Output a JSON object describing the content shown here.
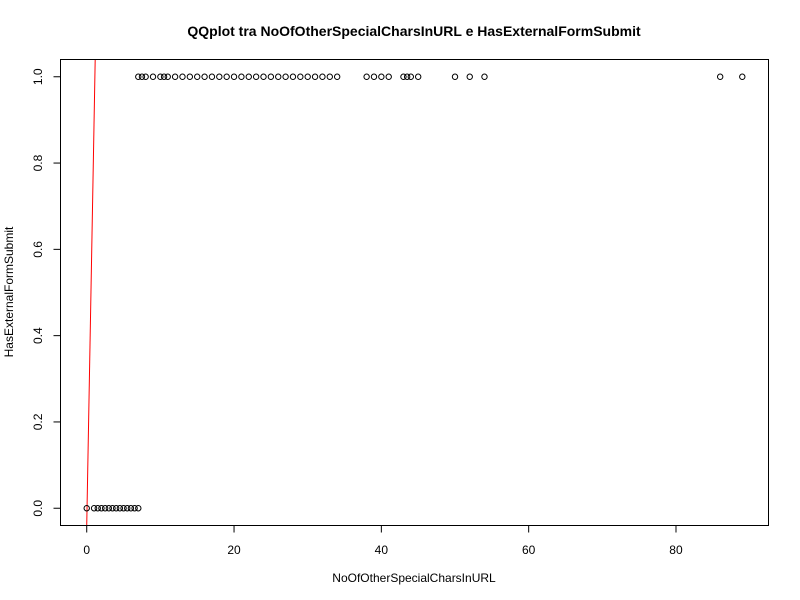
{
  "chart_data": {
    "type": "scatter",
    "title": "QQplot tra NoOfOtherSpecialCharsInURL e HasExternalFormSubmit",
    "xlabel": "NoOfOtherSpecialCharsInURL",
    "ylabel": "HasExternalFormSubmit",
    "xlim": [
      -3.56,
      92.56
    ],
    "ylim": [
      -0.04,
      1.04
    ],
    "x_ticks": [
      0,
      20,
      40,
      60,
      80
    ],
    "y_ticks": [
      0.0,
      0.2,
      0.4,
      0.6,
      0.8,
      1.0
    ],
    "x_tick_labels": [
      "0",
      "20",
      "40",
      "60",
      "80"
    ],
    "y_tick_labels": [
      "0.0",
      "0.2",
      "0.4",
      "0.6",
      "0.8",
      "1.0"
    ],
    "grid": false,
    "legend": "none",
    "series": [
      {
        "marker": "open-circle",
        "color": "#000000",
        "points": [
          {
            "x": 0,
            "y": 0
          },
          {
            "x": 1,
            "y": 0
          },
          {
            "x": 1.5,
            "y": 0
          },
          {
            "x": 2,
            "y": 0
          },
          {
            "x": 2.5,
            "y": 0
          },
          {
            "x": 3,
            "y": 0
          },
          {
            "x": 3.5,
            "y": 0
          },
          {
            "x": 4,
            "y": 0
          },
          {
            "x": 4.5,
            "y": 0
          },
          {
            "x": 5,
            "y": 0
          },
          {
            "x": 5.5,
            "y": 0
          },
          {
            "x": 6,
            "y": 0
          },
          {
            "x": 6.5,
            "y": 0
          },
          {
            "x": 7,
            "y": 0
          },
          {
            "x": 7,
            "y": 1
          },
          {
            "x": 7.5,
            "y": 1
          },
          {
            "x": 8,
            "y": 1
          },
          {
            "x": 9,
            "y": 1
          },
          {
            "x": 10,
            "y": 1
          },
          {
            "x": 10.5,
            "y": 1
          },
          {
            "x": 11,
            "y": 1
          },
          {
            "x": 12,
            "y": 1
          },
          {
            "x": 13,
            "y": 1
          },
          {
            "x": 14,
            "y": 1
          },
          {
            "x": 15,
            "y": 1
          },
          {
            "x": 16,
            "y": 1
          },
          {
            "x": 17,
            "y": 1
          },
          {
            "x": 18,
            "y": 1
          },
          {
            "x": 19,
            "y": 1
          },
          {
            "x": 20,
            "y": 1
          },
          {
            "x": 21,
            "y": 1
          },
          {
            "x": 22,
            "y": 1
          },
          {
            "x": 23,
            "y": 1
          },
          {
            "x": 24,
            "y": 1
          },
          {
            "x": 25,
            "y": 1
          },
          {
            "x": 26,
            "y": 1
          },
          {
            "x": 27,
            "y": 1
          },
          {
            "x": 28,
            "y": 1
          },
          {
            "x": 29,
            "y": 1
          },
          {
            "x": 30,
            "y": 1
          },
          {
            "x": 31,
            "y": 1
          },
          {
            "x": 32,
            "y": 1
          },
          {
            "x": 33,
            "y": 1
          },
          {
            "x": 34,
            "y": 1
          },
          {
            "x": 38,
            "y": 1
          },
          {
            "x": 39,
            "y": 1
          },
          {
            "x": 40,
            "y": 1
          },
          {
            "x": 41,
            "y": 1
          },
          {
            "x": 43,
            "y": 1
          },
          {
            "x": 43.5,
            "y": 1
          },
          {
            "x": 44,
            "y": 1
          },
          {
            "x": 45,
            "y": 1
          },
          {
            "x": 50,
            "y": 1
          },
          {
            "x": 52,
            "y": 1
          },
          {
            "x": 54,
            "y": 1
          },
          {
            "x": 86,
            "y": 1
          },
          {
            "x": 89,
            "y": 1
          }
        ]
      }
    ],
    "reference_line": {
      "color": "#ff0000",
      "x": [
        0,
        1.15
      ],
      "y": [
        -0.04,
        1.04
      ]
    }
  }
}
